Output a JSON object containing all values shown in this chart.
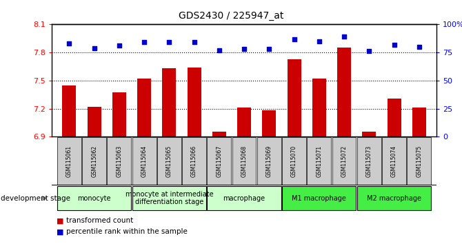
{
  "title": "GDS2430 / 225947_at",
  "samples": [
    "GSM115061",
    "GSM115062",
    "GSM115063",
    "GSM115064",
    "GSM115065",
    "GSM115066",
    "GSM115067",
    "GSM115068",
    "GSM115069",
    "GSM115070",
    "GSM115071",
    "GSM115072",
    "GSM115073",
    "GSM115074",
    "GSM115075"
  ],
  "bar_values": [
    7.45,
    7.22,
    7.37,
    7.52,
    7.63,
    7.64,
    6.95,
    7.21,
    7.18,
    7.73,
    7.52,
    7.85,
    6.95,
    7.31,
    7.21
  ],
  "dot_values": [
    83,
    79,
    81,
    84,
    84,
    84,
    77,
    78,
    78,
    87,
    85,
    89,
    76,
    82,
    80
  ],
  "ylim_left": [
    6.9,
    8.1
  ],
  "ylim_right": [
    0,
    100
  ],
  "yticks_left": [
    6.9,
    7.2,
    7.5,
    7.8,
    8.1
  ],
  "yticks_right": [
    0,
    25,
    50,
    75,
    100
  ],
  "ytick_labels_right": [
    "0",
    "25",
    "50",
    "75",
    "100%"
  ],
  "hlines": [
    7.2,
    7.5,
    7.8
  ],
  "bar_color": "#cc0000",
  "dot_color": "#0000cc",
  "group_defs": [
    {
      "start": 0,
      "end": 3,
      "label": "monocyte",
      "color": "#ccffcc"
    },
    {
      "start": 3,
      "end": 6,
      "label": "monocyte at intermediate\ndifferentiation stage",
      "color": "#ccffcc"
    },
    {
      "start": 6,
      "end": 9,
      "label": "macrophage",
      "color": "#ccffcc"
    },
    {
      "start": 9,
      "end": 12,
      "label": "M1 macrophage",
      "color": "#44ee44"
    },
    {
      "start": 12,
      "end": 15,
      "label": "M2 macrophage",
      "color": "#44ee44"
    }
  ],
  "legend_items": [
    {
      "label": "transformed count",
      "color": "#cc0000"
    },
    {
      "label": "percentile rank within the sample",
      "color": "#0000cc"
    }
  ],
  "dev_stage_label": "development stage",
  "label_box_color": "#cccccc",
  "title_fontsize": 10,
  "axis_fontsize": 8,
  "tick_label_fontsize": 5.5,
  "group_label_fontsize": 7,
  "legend_fontsize": 7.5
}
